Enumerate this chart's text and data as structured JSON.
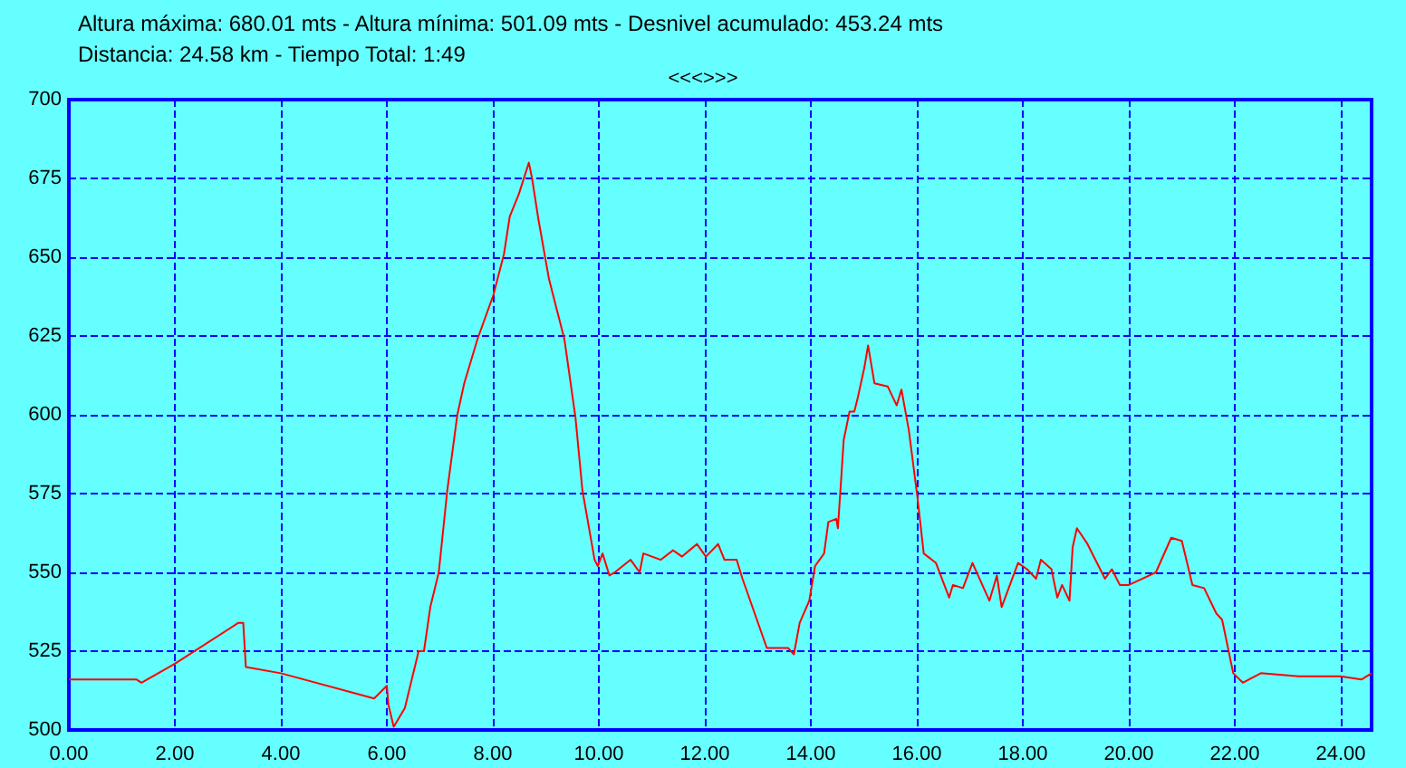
{
  "chart_data": {
    "type": "line",
    "title": "Altura máxima: 680.01 mts - Altura mínima: 501.09 mts - Desnivel acumulado: 453.24 mts",
    "subtitle": "Distancia: 24.58 km - Tiempo Total: 1:49",
    "annotations": [
      "<<<>>>"
    ],
    "series": [
      {
        "color": "#ff0000",
        "x": [
          0,
          1.28,
          1.37,
          2.0,
          3.2,
          3.29,
          3.34,
          4.0,
          5.76,
          6.0,
          6.03,
          6.13,
          6.34,
          6.6,
          6.7,
          6.82,
          6.98,
          7.14,
          7.33,
          7.46,
          7.71,
          8.01,
          8.21,
          8.32,
          8.49,
          8.68,
          8.74,
          8.86,
          9.06,
          9.35,
          9.56,
          9.69,
          9.92,
          9.98,
          10.07,
          10.2,
          10.3,
          10.6,
          10.77,
          10.84,
          11.17,
          11.4,
          11.57,
          11.85,
          12.02,
          12.25,
          12.37,
          12.6,
          12.71,
          13.17,
          13.57,
          13.68,
          13.79,
          13.97,
          14.08,
          14.25,
          14.33,
          14.48,
          14.51,
          14.57,
          14.62,
          14.73,
          14.82,
          14.88,
          15.01,
          15.08,
          15.2,
          15.45,
          15.62,
          15.71,
          15.85,
          16.01,
          16.13,
          16.36,
          16.61,
          16.68,
          16.87,
          17.05,
          17.37,
          17.51,
          17.6,
          17.91,
          18.08,
          18.25,
          18.34,
          18.54,
          18.65,
          18.74,
          18.88,
          18.94,
          19.02,
          19.22,
          19.55,
          19.68,
          19.83,
          20.0,
          20.51,
          20.8,
          21.0,
          21.2,
          21.42,
          21.65,
          21.76,
          21.97,
          22.15,
          22.49,
          23.2,
          23.99,
          24.39,
          24.58
        ],
        "values": [
          516,
          516,
          515,
          521,
          534,
          534,
          520,
          518,
          510,
          514,
          508,
          501,
          507,
          525,
          525,
          539,
          550,
          576,
          600,
          610,
          624,
          638,
          651,
          663,
          670,
          680,
          675,
          662,
          643,
          624,
          599,
          576,
          554,
          552,
          556,
          549,
          550,
          554,
          550,
          556,
          554,
          557,
          555,
          559,
          555,
          559,
          554,
          554,
          548,
          526,
          526,
          524,
          534,
          541,
          552,
          556,
          566,
          567,
          564,
          579,
          592,
          601,
          601,
          605,
          615,
          622,
          610,
          609,
          603,
          608,
          595,
          574,
          556,
          553,
          542,
          546,
          545,
          553,
          541,
          549,
          539,
          553,
          551,
          548,
          554,
          551,
          542,
          546,
          541,
          558,
          564,
          559,
          548,
          551,
          546,
          546,
          550,
          561,
          560,
          546,
          545,
          537,
          535,
          518,
          515,
          518,
          517,
          517,
          516,
          518
        ]
      }
    ],
    "xlim": [
      0,
      24.58
    ],
    "ylim": [
      500,
      700
    ],
    "xticks": [
      {
        "value": 0,
        "label": "0.00"
      },
      {
        "value": 2,
        "label": "2.00"
      },
      {
        "value": 4,
        "label": "4.00"
      },
      {
        "value": 6,
        "label": "6.00"
      },
      {
        "value": 8,
        "label": "8.00"
      },
      {
        "value": 10,
        "label": "10.00"
      },
      {
        "value": 12,
        "label": "12.00"
      },
      {
        "value": 14,
        "label": "14.00"
      },
      {
        "value": 16,
        "label": "16.00"
      },
      {
        "value": 18,
        "label": "18.00"
      },
      {
        "value": 20,
        "label": "20.00"
      },
      {
        "value": 22,
        "label": "22.00"
      },
      {
        "value": 24,
        "label": "24.00"
      }
    ],
    "yticks": [
      500,
      525,
      550,
      575,
      600,
      625,
      650,
      675,
      700
    ],
    "grid": true,
    "marker": "none",
    "line_style": "solid"
  }
}
